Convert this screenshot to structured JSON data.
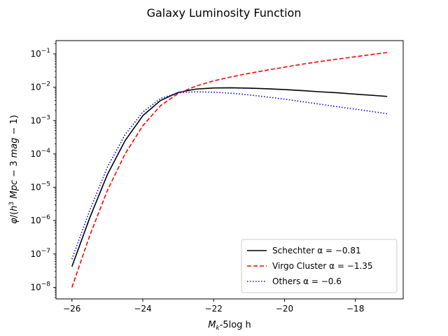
{
  "chart_data": {
    "type": "line",
    "title": "Galaxy Luminosity Function",
    "xlabel": "M_k-5log h",
    "ylabel": "φ/(h³ Mpc⁻3 mag⁻1)",
    "xlim": [
      -26.45,
      -16.65
    ],
    "ylim": [
      4.5e-09,
      0.25
    ],
    "yscale": "log",
    "grid": false,
    "legend_position": "lower-right",
    "x_ticks": [
      -26,
      -24,
      -22,
      -20,
      -18
    ],
    "x_tick_labels": [
      "−26",
      "−24",
      "−22",
      "−20",
      "−18"
    ],
    "y_ticks": [
      1e-08,
      1e-07,
      1e-06,
      1e-05,
      0.0001,
      0.001,
      0.01,
      0.1
    ],
    "y_tick_labels": [
      {
        "base": "10",
        "exp": "−8"
      },
      {
        "base": "10",
        "exp": "−7"
      },
      {
        "base": "10",
        "exp": "−6"
      },
      {
        "base": "10",
        "exp": "−5"
      },
      {
        "base": "10",
        "exp": "−4"
      },
      {
        "base": "10",
        "exp": "−3"
      },
      {
        "base": "10",
        "exp": "−2"
      },
      {
        "base": "10",
        "exp": "−1"
      }
    ],
    "series": [
      {
        "name": "Schechter α = −0.81",
        "color": "#000000",
        "style": "solid",
        "x": [
          -26,
          -25.5,
          -25,
          -24.5,
          -24,
          -23.5,
          -23,
          -22.5,
          -22,
          -21.5,
          -21,
          -20.5,
          -20,
          -19.5,
          -19,
          -18.5,
          -18,
          -17.5,
          -17.1
        ],
        "y": [
          4.2e-08,
          1.2e-06,
          2.4e-05,
          0.00025,
          0.0014,
          0.004,
          0.007,
          0.0088,
          0.0095,
          0.0096,
          0.0094,
          0.009,
          0.0085,
          0.0079,
          0.0073,
          0.0068,
          0.0062,
          0.0057,
          0.0053
        ]
      },
      {
        "name": "Virgo Cluster α = −1.35",
        "color": "#ff0000",
        "style": "dashed",
        "x": [
          -26,
          -25.5,
          -25,
          -24.5,
          -24,
          -23.5,
          -23,
          -22.5,
          -22,
          -21.5,
          -21,
          -20.5,
          -20,
          -19.5,
          -19,
          -18.5,
          -18,
          -17.5,
          -17.1
        ],
        "y": [
          1e-08,
          3.5e-07,
          8e-06,
          0.0001,
          0.0007,
          0.0028,
          0.0065,
          0.0108,
          0.0155,
          0.0205,
          0.026,
          0.0325,
          0.04,
          0.049,
          0.059,
          0.07,
          0.082,
          0.097,
          0.11
        ]
      },
      {
        "name": "Others α = −0.6",
        "color": "#0000ff",
        "style": "dotted",
        "x": [
          -26,
          -25.5,
          -25,
          -24.5,
          -24,
          -23.5,
          -23,
          -22.5,
          -22,
          -21.5,
          -21,
          -20.5,
          -20,
          -19.5,
          -19,
          -18.5,
          -18,
          -17.5,
          -17.1
        ],
        "y": [
          7e-08,
          2e-06,
          4e-05,
          0.00038,
          0.0018,
          0.0046,
          0.0068,
          0.0073,
          0.0071,
          0.0066,
          0.0059,
          0.0051,
          0.0044,
          0.0037,
          0.0031,
          0.0026,
          0.0022,
          0.00185,
          0.0016
        ]
      }
    ]
  }
}
